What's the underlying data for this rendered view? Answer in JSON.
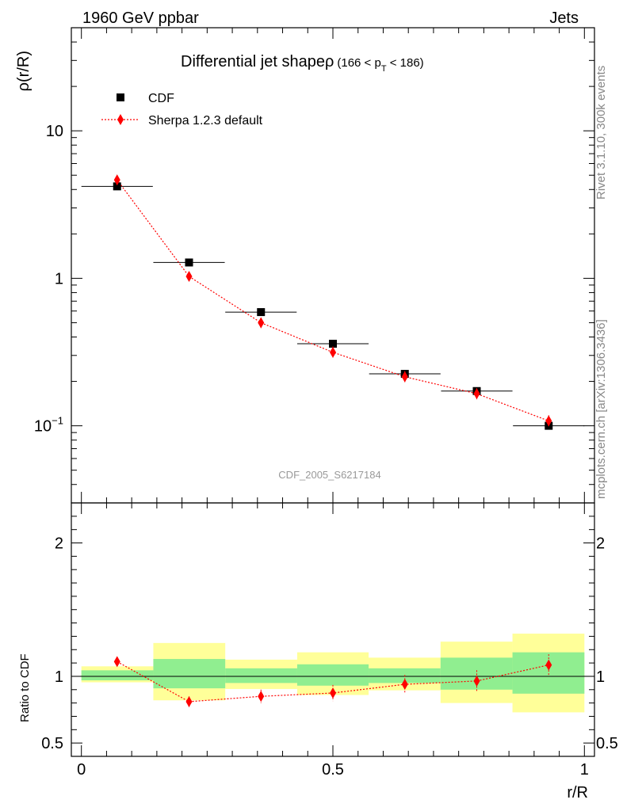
{
  "header": {
    "left": "1960 GeV ppbar",
    "right": "Jets"
  },
  "side_labels": {
    "rivet": "Rivet 3.1.10,  300k events",
    "source": "mcplots.cern.ch [arXiv:1306.3436]"
  },
  "chart_data": [
    {
      "type": "scatter",
      "title_main": "Differential jet shape",
      "title_rho": "ρ",
      "title_range_prefix": "(166 < p",
      "title_range_sub": "T",
      "title_range_suffix": " < 186)",
      "ylabel": "ρ(r/R)",
      "xlabel": "",
      "yscale": "log",
      "ylim": [
        0.03,
        50
      ],
      "xlim": [
        -0.02,
        1.02
      ],
      "y_ticks": [
        {
          "value": 10,
          "label": "10"
        },
        {
          "value": 1,
          "label": "1"
        },
        {
          "value": 0.1,
          "label": "10",
          "sup": "−1"
        }
      ],
      "legend_position": "top-left",
      "watermark": "CDF_2005_S6217184",
      "series": [
        {
          "name": "CDF",
          "marker": "square",
          "color": "#000000",
          "x": [
            0.071,
            0.214,
            0.357,
            0.5,
            0.643,
            0.786,
            0.929
          ],
          "y": [
            4.2,
            1.28,
            0.59,
            0.36,
            0.225,
            0.172,
            0.1
          ],
          "x_err": [
            0.071,
            0.071,
            0.071,
            0.071,
            0.071,
            0.071,
            0.071
          ]
        },
        {
          "name": "Sherpa 1.2.3 default",
          "marker": "diamond",
          "line": "dotted",
          "color": "#ff0000",
          "x": [
            0.071,
            0.214,
            0.357,
            0.5,
            0.643,
            0.786,
            0.929
          ],
          "y": [
            4.65,
            1.03,
            0.5,
            0.315,
            0.215,
            0.165,
            0.108
          ],
          "y_err": [
            0.15,
            0.06,
            0.04,
            0.03,
            0.02,
            0.015,
            0.01
          ]
        }
      ]
    },
    {
      "type": "scatter",
      "ylabel": "Ratio to CDF",
      "xlabel": "r/R",
      "ylim": [
        0.4,
        2.3
      ],
      "xlim": [
        -0.02,
        1.02
      ],
      "y_ticks": [
        {
          "value": 0.5,
          "label": "0.5"
        },
        {
          "value": 1,
          "label": "1"
        },
        {
          "value": 2,
          "label": "2"
        }
      ],
      "x_ticks": [
        {
          "value": 0,
          "label": "0"
        },
        {
          "value": 0.5,
          "label": "0.5"
        },
        {
          "value": 1,
          "label": "1"
        }
      ],
      "bands": [
        {
          "x0": 0.0,
          "x1": 0.143,
          "yellow": [
            0.955,
            1.075
          ],
          "green": [
            0.97,
            1.045
          ]
        },
        {
          "x0": 0.143,
          "x1": 0.286,
          "yellow": [
            0.82,
            1.25
          ],
          "green": [
            0.91,
            1.13
          ]
        },
        {
          "x0": 0.286,
          "x1": 0.429,
          "yellow": [
            0.905,
            1.125
          ],
          "green": [
            0.95,
            1.06
          ]
        },
        {
          "x0": 0.429,
          "x1": 0.571,
          "yellow": [
            0.86,
            1.18
          ],
          "green": [
            0.93,
            1.09
          ]
        },
        {
          "x0": 0.571,
          "x1": 0.714,
          "yellow": [
            0.895,
            1.14
          ],
          "green": [
            0.95,
            1.06
          ]
        },
        {
          "x0": 0.714,
          "x1": 0.857,
          "yellow": [
            0.8,
            1.26
          ],
          "green": [
            0.9,
            1.14
          ]
        },
        {
          "x0": 0.857,
          "x1": 1.0,
          "yellow": [
            0.73,
            1.32
          ],
          "green": [
            0.87,
            1.18
          ]
        }
      ],
      "series": [
        {
          "name": "Sherpa 1.2.3 default",
          "color": "#ff0000",
          "x": [
            0.071,
            0.214,
            0.357,
            0.5,
            0.643,
            0.786,
            0.929
          ],
          "y": [
            1.11,
            0.81,
            0.85,
            0.875,
            0.94,
            0.965,
            1.085
          ],
          "y_err": [
            0.02,
            0.04,
            0.05,
            0.06,
            0.07,
            0.08,
            0.08
          ]
        }
      ]
    }
  ]
}
